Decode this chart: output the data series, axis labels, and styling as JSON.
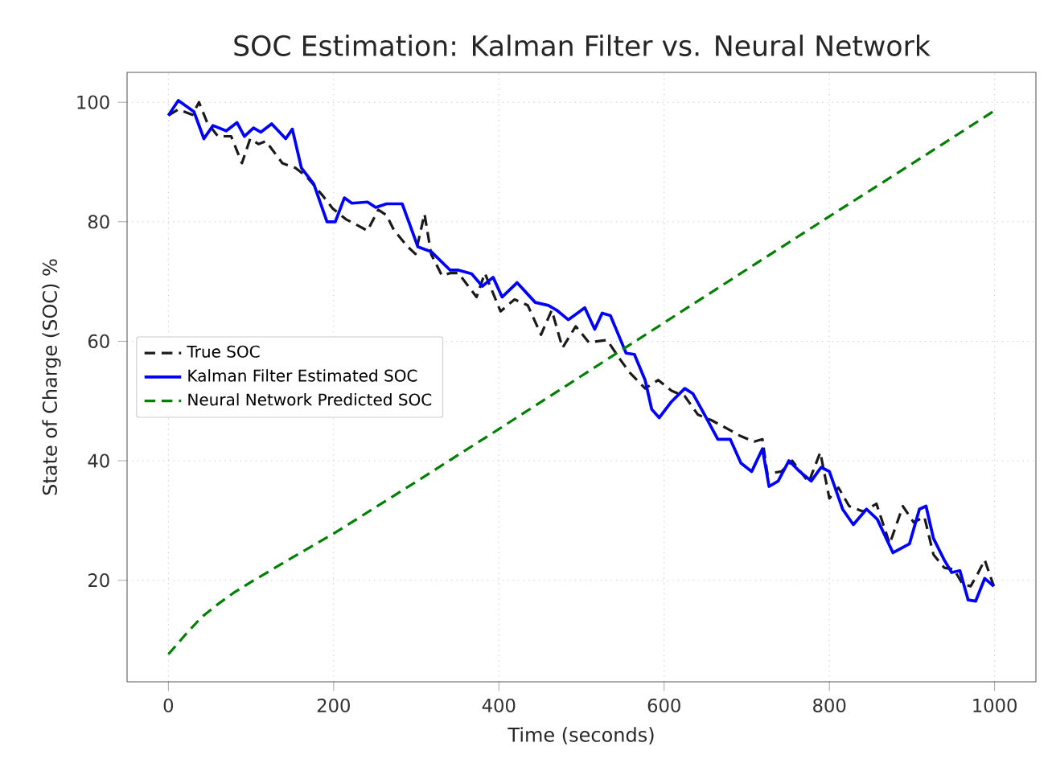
{
  "chart_data": {
    "type": "line",
    "title": "SOC Estimation: Kalman Filter vs. Neural Network",
    "xlabel": "Time (seconds)",
    "ylabel": "State of Charge (SOC) %",
    "xlim": [
      -50,
      1050
    ],
    "ylim": [
      3,
      105
    ],
    "xticks": [
      0,
      200,
      400,
      600,
      800,
      1000
    ],
    "yticks": [
      20,
      40,
      60,
      80,
      100
    ],
    "grid": true,
    "legend": "left",
    "marker": "none",
    "series": [
      {
        "name": "True SOC",
        "color": "#1a1a1a",
        "line_style": "dashed",
        "x": [
          0,
          12,
          29,
          37,
          47,
          60,
          76,
          89,
          99,
          109,
          118,
          138,
          154,
          167,
          186,
          199,
          215,
          225,
          241,
          254,
          264,
          273,
          289,
          299,
          310,
          318,
          331,
          341,
          351,
          373,
          383,
          402,
          419,
          435,
          451,
          464,
          477,
          493,
          509,
          531,
          544,
          558,
          577,
          593,
          609,
          625,
          641,
          657,
          676,
          693,
          709,
          719,
          725,
          742,
          755,
          775,
          789,
          800,
          811,
          824,
          841,
          857,
          873,
          889,
          902,
          915,
          926,
          939,
          951,
          961,
          971,
          980,
          988,
          999
        ],
        "values": [
          97.8,
          98.8,
          97.9,
          100,
          96.6,
          94.3,
          94.3,
          89.8,
          93.9,
          93,
          93.5,
          89.8,
          89,
          87.6,
          84.5,
          82.2,
          80.4,
          79.7,
          78.5,
          82,
          81.1,
          78.6,
          75.9,
          74.6,
          81.3,
          74.6,
          71,
          71.4,
          71.4,
          67.4,
          71.4,
          65,
          67,
          66,
          61.1,
          65.2,
          58.9,
          62.5,
          59.8,
          60.2,
          57.5,
          54.8,
          52.1,
          53.5,
          51.7,
          50.8,
          47.7,
          46.8,
          45.4,
          44.1,
          43.2,
          43.6,
          37.8,
          38.2,
          40,
          36.4,
          41.4,
          33.7,
          35.5,
          32.4,
          31.5,
          32.8,
          26.1,
          32.4,
          29.7,
          30.6,
          24.3,
          22.1,
          21.8,
          19.4,
          19,
          21.2,
          23.4,
          19
        ]
      },
      {
        "name": "Kalman Filter Estimated SOC",
        "color": "#0000ff",
        "line_style": "solid",
        "x": [
          0,
          12,
          31,
          43,
          54,
          70,
          83,
          92,
          103,
          112,
          125,
          142,
          150,
          161,
          176,
          192,
          202,
          213,
          222,
          241,
          251,
          264,
          283,
          302,
          318,
          341,
          351,
          367,
          380,
          393,
          404,
          422,
          444,
          460,
          470,
          484,
          504,
          516,
          525,
          535,
          554,
          564,
          577,
          585,
          594,
          609,
          625,
          635,
          651,
          665,
          680,
          693,
          706,
          719,
          727,
          738,
          751,
          764,
          778,
          790,
          800,
          816,
          829,
          845,
          858,
          877,
          897,
          909,
          917,
          926,
          939,
          948,
          958,
          968,
          977,
          988,
          999
        ],
        "values": [
          97.8,
          100.3,
          98.4,
          93.9,
          96.1,
          95.2,
          96.6,
          94.3,
          95.7,
          95,
          96.4,
          93.9,
          95.5,
          89,
          86.3,
          80,
          80,
          84,
          83.1,
          83.3,
          82.4,
          83,
          83,
          75.8,
          75,
          71.9,
          71.9,
          71.3,
          69.2,
          70.7,
          67.4,
          69.8,
          66.5,
          66,
          65.2,
          63.6,
          65.6,
          62,
          64.7,
          64.3,
          58,
          57.8,
          53.5,
          48.6,
          47.2,
          49.9,
          52.1,
          51.2,
          47.2,
          43.6,
          43.6,
          39.6,
          38.2,
          42,
          35.7,
          36.6,
          40,
          38.2,
          36.6,
          38.9,
          38.2,
          31.9,
          29.3,
          31.9,
          30.2,
          24.6,
          26.1,
          31.9,
          32.4,
          27,
          23.4,
          21.3,
          21.6,
          16.7,
          16.5,
          20.3,
          19
        ]
      },
      {
        "name": "Neural Network Predicted SOC",
        "color": "#008000",
        "line_style": "dashed",
        "x": [
          0,
          20,
          40,
          60,
          80,
          100,
          150,
          200,
          300,
          400,
          500,
          600,
          700,
          800,
          900,
          1000
        ],
        "values": [
          7.6,
          10.8,
          13.8,
          16,
          18,
          19.7,
          23.8,
          27.8,
          36.5,
          45.3,
          54.2,
          63.1,
          72,
          80.9,
          89.7,
          98.6
        ]
      }
    ]
  }
}
